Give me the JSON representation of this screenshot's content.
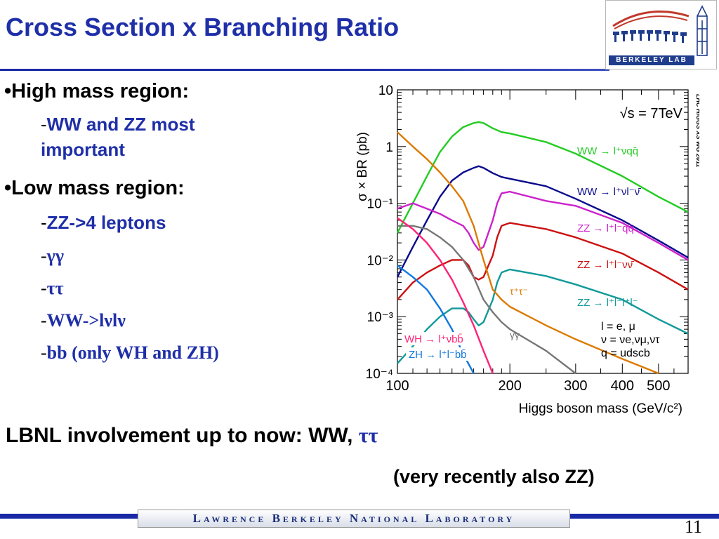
{
  "slide": {
    "title": "Cross Section x Branching Ratio",
    "page_number": "11",
    "colors": {
      "title": "#1f2fa8",
      "sub_bullets": "#1f2fa8"
    }
  },
  "logo": {
    "text": "BERKELEY LAB",
    "icon": "berkeley-lab-logo"
  },
  "bullets": {
    "high_mass": "High mass region:",
    "high_mass_sub_1": "WW and ZZ most",
    "high_mass_sub_2": "important",
    "low_mass": "Low mass region:",
    "low_mass_items": [
      "ZZ->4 leptons",
      "γγ",
      "ττ",
      "WW->lνlν",
      "bb (only WH and ZH)"
    ]
  },
  "footer": {
    "lbnl_prefix": "LBNL involvement up to now: WW,",
    "lbnl_greek": "ττ",
    "recent": "(very recently also ZZ)",
    "lab_name": "Lawrence Berkeley National Laboratory"
  },
  "chart_data": {
    "type": "line",
    "xlabel": "Higgs boson mass (GeV/c²)",
    "ylabel": "σ × BR (pb)",
    "xscale": "log",
    "yscale": "log",
    "xlim": [
      100,
      600
    ],
    "ylim": [
      0.0001,
      10
    ],
    "x_ticks": [
      "100",
      "200",
      "300",
      "400",
      "500"
    ],
    "y_ticks": [
      "10⁻⁴",
      "10⁻³",
      "10⁻²",
      "10⁻¹",
      "1",
      "10"
    ],
    "energy_label": "√s = 7TeV",
    "side_label": "LHC HIGGS XS WG 2011",
    "legend_note": [
      "l = e, μ",
      "ν = νe,νμ,ντ",
      "q = udscb"
    ],
    "grid": true,
    "series": [
      {
        "name": "WW → l⁺νqq̄",
        "color": "#22cc22",
        "x": [
          100,
          110,
          120,
          130,
          140,
          150,
          160,
          165,
          170,
          180,
          190,
          200,
          250,
          300,
          400,
          500,
          600
        ],
        "y": [
          0.03,
          0.1,
          0.3,
          0.8,
          1.5,
          2.2,
          2.6,
          2.7,
          2.6,
          2.1,
          1.8,
          1.7,
          1.2,
          0.75,
          0.3,
          0.13,
          0.07
        ]
      },
      {
        "name": "WW → l⁺νl⁻ν̄",
        "color": "#0a0a8c",
        "x": [
          100,
          110,
          120,
          130,
          140,
          150,
          160,
          165,
          170,
          180,
          190,
          200,
          250,
          300,
          400,
          500,
          600
        ],
        "y": [
          0.005,
          0.017,
          0.05,
          0.13,
          0.25,
          0.35,
          0.42,
          0.45,
          0.42,
          0.34,
          0.29,
          0.27,
          0.2,
          0.12,
          0.05,
          0.022,
          0.011
        ]
      },
      {
        "name": "ZZ → l⁺l⁻qq̄",
        "color": "#cc22cc",
        "x": [
          100,
          110,
          120,
          130,
          140,
          150,
          155,
          160,
          165,
          170,
          180,
          185,
          190,
          200,
          250,
          300,
          400,
          500,
          600
        ],
        "y": [
          0.08,
          0.1,
          0.08,
          0.065,
          0.05,
          0.04,
          0.03,
          0.02,
          0.015,
          0.017,
          0.05,
          0.1,
          0.15,
          0.16,
          0.11,
          0.09,
          0.045,
          0.02,
          0.01
        ]
      },
      {
        "name": "ZZ → l⁺l⁻νν̄",
        "color": "#cc1111",
        "x": [
          100,
          110,
          120,
          130,
          140,
          150,
          155,
          160,
          165,
          170,
          180,
          185,
          190,
          200,
          250,
          300,
          400,
          500,
          600
        ],
        "y": [
          0.002,
          0.004,
          0.006,
          0.008,
          0.01,
          0.01,
          0.008,
          0.005,
          0.0045,
          0.005,
          0.012,
          0.025,
          0.04,
          0.045,
          0.035,
          0.025,
          0.013,
          0.006,
          0.003
        ]
      },
      {
        "name": "ZZ → l⁺l⁻l⁺l⁻",
        "color": "#119999",
        "x": [
          100,
          110,
          120,
          130,
          140,
          150,
          155,
          160,
          165,
          170,
          180,
          185,
          190,
          200,
          250,
          300,
          400,
          500,
          600
        ],
        "y": [
          0.00015,
          0.0003,
          0.0006,
          0.001,
          0.0014,
          0.0014,
          0.0012,
          0.0009,
          0.0007,
          0.0008,
          0.002,
          0.004,
          0.006,
          0.0068,
          0.0052,
          0.0037,
          0.002,
          0.0009,
          0.0005
        ]
      },
      {
        "name": "τ⁺τ⁻",
        "color": "#dd7a00",
        "x": [
          100,
          110,
          120,
          130,
          140,
          150,
          160,
          170,
          180,
          190,
          200,
          250,
          300,
          400,
          500
        ],
        "y": [
          1.8,
          1.0,
          0.6,
          0.35,
          0.2,
          0.11,
          0.04,
          0.01,
          0.003,
          0.002,
          0.0015,
          0.0007,
          0.0004,
          0.00018,
          0.0001
        ]
      },
      {
        "name": "γγ",
        "color": "#777777",
        "x": [
          100,
          110,
          120,
          130,
          140,
          150,
          160,
          170,
          180,
          190,
          200,
          250,
          300
        ],
        "y": [
          0.04,
          0.04,
          0.035,
          0.025,
          0.017,
          0.01,
          0.005,
          0.002,
          0.0012,
          0.0008,
          0.0006,
          0.00025,
          0.0001
        ]
      },
      {
        "name": "WH → l⁺νbb̄",
        "color": "#ff2277",
        "x": [
          100,
          110,
          120,
          130,
          140,
          150,
          160,
          170,
          180
        ],
        "y": [
          0.055,
          0.035,
          0.02,
          0.01,
          0.0045,
          0.0018,
          0.0007,
          0.00025,
          0.0001
        ]
      },
      {
        "name": "ZH → l⁺l⁻bb̄",
        "color": "#1177dd",
        "x": [
          100,
          110,
          120,
          130,
          140,
          150,
          160
        ],
        "y": [
          0.008,
          0.005,
          0.003,
          0.0014,
          0.0006,
          0.00022,
          0.0001
        ]
      }
    ]
  }
}
